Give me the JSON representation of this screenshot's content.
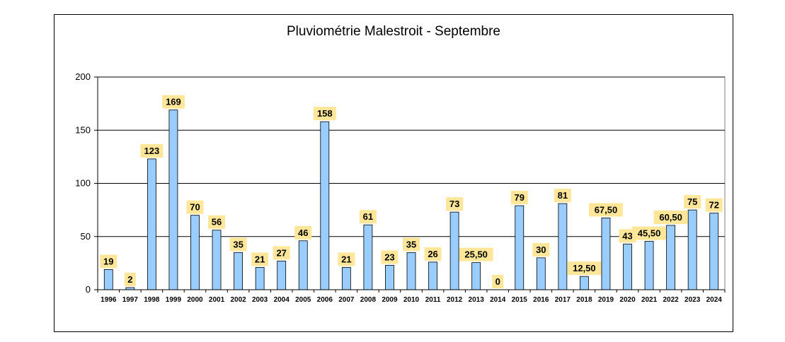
{
  "chart_data": {
    "type": "bar",
    "title": "Pluviométrie Malestroit - Septembre",
    "xlabel": "",
    "ylabel": "",
    "ylim": [
      0,
      200
    ],
    "yticks": [
      0,
      50,
      100,
      150,
      200
    ],
    "grid": true,
    "categories": [
      "1996",
      "1997",
      "1998",
      "1999",
      "2000",
      "2001",
      "2002",
      "2003",
      "2004",
      "2005",
      "2006",
      "2007",
      "2008",
      "2009",
      "2010",
      "2011",
      "2012",
      "2013",
      "2014",
      "2015",
      "2016",
      "2017",
      "2018",
      "2019",
      "2020",
      "2021",
      "2022",
      "2023",
      "2024"
    ],
    "values": [
      19,
      2,
      123,
      169,
      70,
      56,
      35,
      21,
      27,
      46,
      158,
      21,
      61,
      23,
      35,
      26,
      73,
      25.5,
      0,
      79,
      30,
      81,
      12.5,
      67.5,
      43,
      45.5,
      60.5,
      75,
      72
    ],
    "labels": [
      "19",
      "2",
      "123",
      "169",
      "70",
      "56",
      "35",
      "21",
      "27",
      "46",
      "158",
      "21",
      "61",
      "23",
      "35",
      "26",
      "73",
      "25,50",
      "0",
      "79",
      "30",
      "81",
      "12,50",
      "67,50",
      "43",
      "45,50",
      "60,50",
      "75",
      "72"
    ],
    "colors": {
      "bar_fill": "#99ccff",
      "bar_stroke": "#000000",
      "label_bg": "#ffe699",
      "grid": "#000000"
    }
  }
}
